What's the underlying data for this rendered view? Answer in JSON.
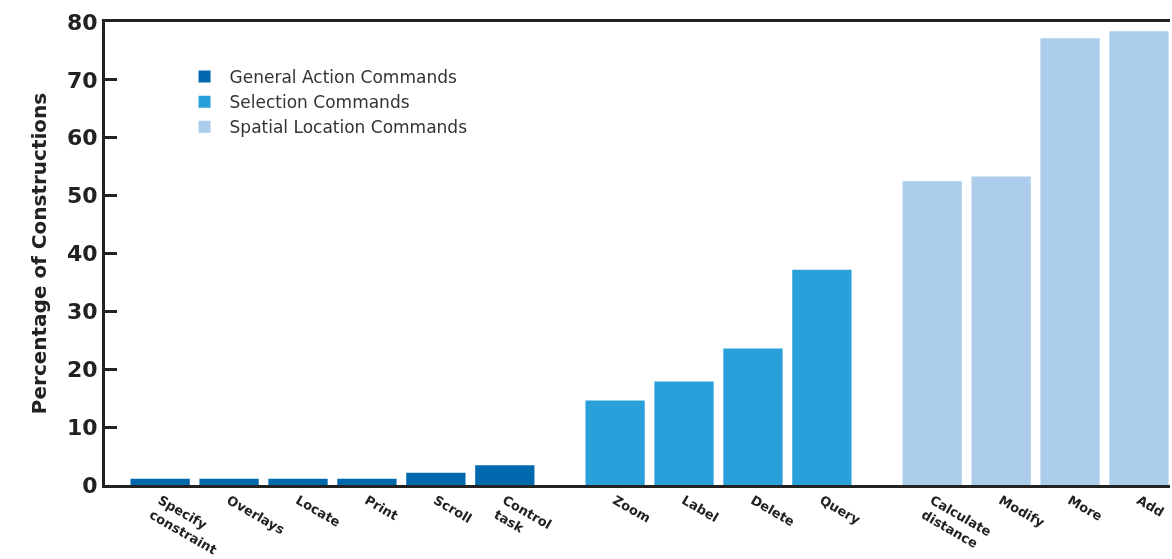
{
  "chart_data": {
    "type": "bar",
    "ylabel": "Percentage of Constructions",
    "categories": [
      "Specify\nconstraint",
      "Overlays",
      "Locate",
      "Print",
      "Scroll",
      "Control\ntask",
      "Zoom",
      "Label",
      "Delete",
      "Query",
      "Calculate\ndistance",
      "Modify",
      "More",
      "Add"
    ],
    "series": [
      {
        "name": "General Action Commands",
        "color": "#0068ad",
        "values": [
          1.1,
          1.1,
          1.1,
          1.1,
          2.1,
          3.4,
          null,
          null,
          null,
          null,
          null,
          null,
          null,
          null
        ]
      },
      {
        "name": "Selection Commands",
        "color": "#2aa0da",
        "values": [
          null,
          null,
          null,
          null,
          null,
          null,
          14.6,
          17.9,
          23.6,
          37.2,
          null,
          null,
          null,
          null
        ]
      },
      {
        "name": "Spatial Location Commands",
        "color": "#abcdeb",
        "values": [
          null,
          null,
          null,
          null,
          null,
          null,
          null,
          null,
          null,
          null,
          52.5,
          53.3,
          77.2,
          78.4
        ]
      }
    ],
    "ylim": [
      0,
      80
    ],
    "yticks": [
      0,
      10,
      20,
      30,
      40,
      50,
      60,
      70,
      80
    ],
    "legend": "top left"
  }
}
